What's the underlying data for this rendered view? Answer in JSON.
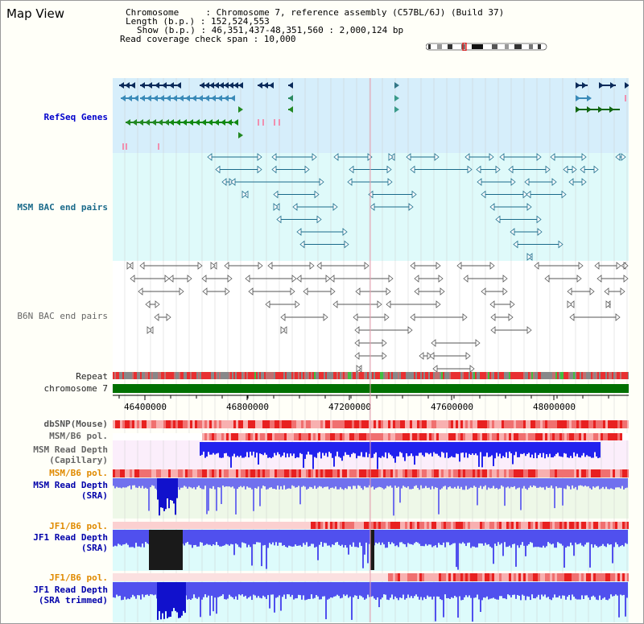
{
  "title": "Map View",
  "info": {
    "chromosome": "Chromosome     : Chromosome 7, reference assembly (C57BL/6J) (Build 37)",
    "length": "Length (b.p.) : 152,524,553",
    "show": "Show (b.p.) : 46,351,437-48,351,560 : 2,000,124 bp",
    "read_coverage": "Read coverage check span : 10,000"
  },
  "tracks": {
    "refseq": "RefSeq Genes",
    "msm_bac": "MSM BAC end pairs",
    "b6n_bac": "B6N BAC end pairs",
    "repeat": "Repeat",
    "chromosome": "chromosome 7",
    "dbsnp": "dbSNP(Mouse)",
    "msm_b6_pol": "MSM/B6 pol.",
    "msm_cap_1": "MSM Read Depth",
    "msm_cap_2": "(Capillary)",
    "msm_b6_pol_2": "MSM/B6 pol.",
    "msm_sra_1": "MSM Read Depth",
    "msm_sra_2": "(SRA)",
    "jf1_b6_pol": "JF1/B6 pol.",
    "jf1_sra_1": "JF1 Read Depth",
    "jf1_sra_2": "(SRA)",
    "jf1_b6_pol_2": "JF1/B6 pol.",
    "jf1_trim_1": "JF1 Read Depth",
    "jf1_trim_2": "(SRA trimmed)"
  },
  "axis": {
    "ticks": [
      "46400000",
      "46800000",
      "47200000",
      "47600000",
      "48000000"
    ]
  },
  "colors": {
    "refseq_label": "#0000cc",
    "msm_bac_label": "#1a6a8a",
    "orange_label": "#e08a00",
    "blue_label": "#0000aa",
    "chromosome_bar": "#007000",
    "depth_blue": "#1a1aee",
    "depth_light": "#7777ee"
  }
}
